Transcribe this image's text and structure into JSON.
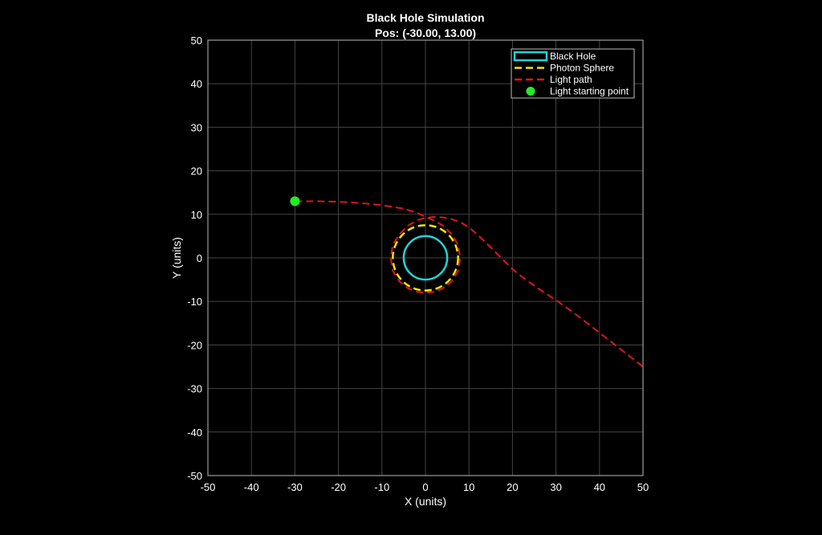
{
  "chart_data": {
    "type": "line",
    "title": "Black Hole Simulation",
    "subtitle": "Pos: (-30.00, 13.00)",
    "xlabel": "X (units)",
    "ylabel": "Y (units)",
    "xlim": [
      -50,
      50
    ],
    "ylim": [
      -50,
      50
    ],
    "xticks": [
      -50,
      -40,
      -30,
      -20,
      -10,
      0,
      10,
      20,
      30,
      40,
      50
    ],
    "yticks": [
      -50,
      -40,
      -30,
      -20,
      -10,
      0,
      10,
      20,
      30,
      40,
      50
    ],
    "grid": true,
    "legend_position": "top-right",
    "colors": {
      "background": "#000000",
      "black_hole": "#22d3d8",
      "photon_sphere": "#f2e600",
      "light_path": "#e0151b",
      "start_point": "#22ee22"
    },
    "black_hole": {
      "center": [
        0,
        0
      ],
      "radius": 5
    },
    "photon_sphere": {
      "center": [
        0,
        0
      ],
      "radius": 7.5
    },
    "light_start": [
      -30,
      13
    ],
    "light_path": {
      "x": [
        -30,
        -25,
        -20,
        -15,
        -10,
        -5,
        -2,
        0,
        2,
        4,
        6,
        7.5,
        8,
        7.5,
        6,
        4,
        2,
        0,
        -2,
        -4,
        -6,
        -7.5,
        -8,
        -7.5,
        -6,
        -4,
        -2,
        0,
        2,
        4,
        6,
        8,
        10,
        12,
        15,
        18,
        20,
        22,
        25,
        28,
        30,
        35,
        40,
        45,
        50
      ],
      "y": [
        13,
        13,
        12.9,
        12.6,
        12.1,
        11.3,
        10.4,
        9.4,
        8.6,
        7.4,
        5.5,
        3.0,
        0,
        -3.0,
        -5.4,
        -7.0,
        -7.8,
        -8.0,
        -7.8,
        -7.0,
        -5.4,
        -3.0,
        0,
        3.0,
        5.4,
        7.4,
        8.6,
        9.2,
        9.4,
        9.3,
        8.9,
        8.2,
        7.0,
        5.3,
        2.4,
        -0.6,
        -2.6,
        -4.2,
        -6.4,
        -8.4,
        -9.7,
        -13.3,
        -17.2,
        -21.1,
        -25.0
      ]
    },
    "legend": [
      {
        "label": "Black Hole",
        "symbol": "rect",
        "color": "#22d3d8"
      },
      {
        "label": "Photon Sphere",
        "symbol": "dash",
        "color": "#f2e600"
      },
      {
        "label": "Light path",
        "symbol": "dash",
        "color": "#e0151b"
      },
      {
        "label": "Light starting point",
        "symbol": "dot",
        "color": "#22ee22"
      }
    ]
  }
}
